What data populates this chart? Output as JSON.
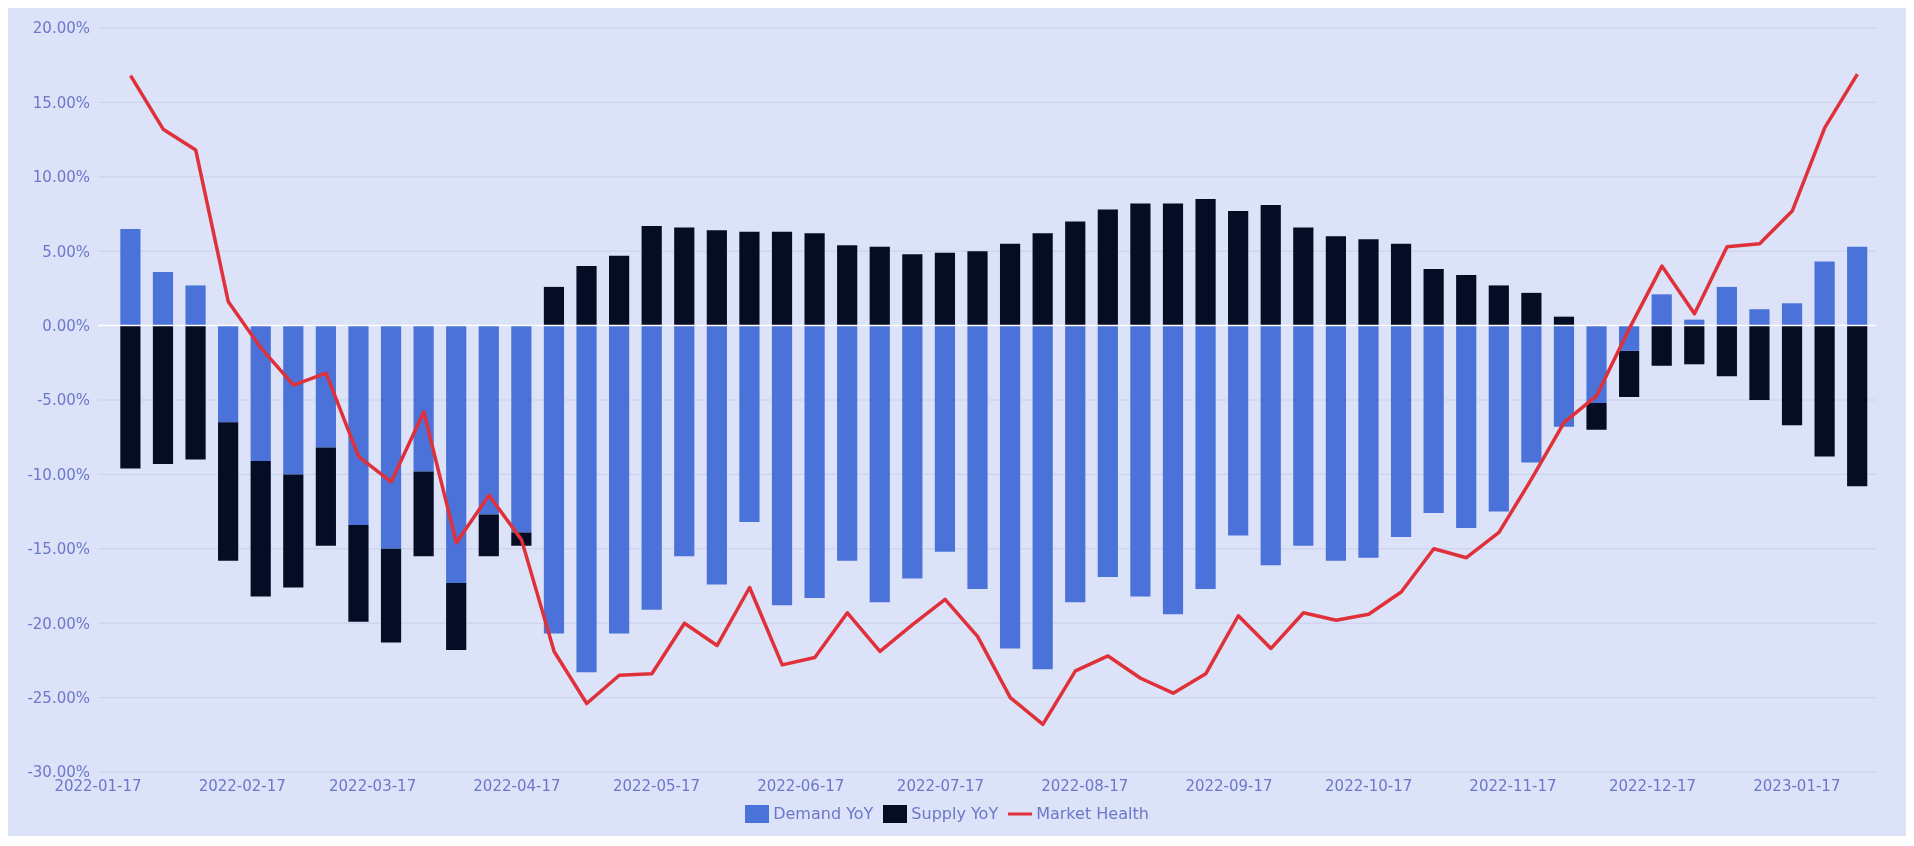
{
  "chart_data": {
    "type": "bar",
    "stacked": true,
    "x": [
      "2022-01-24",
      "2022-01-31",
      "2022-02-07",
      "2022-02-14",
      "2022-02-21",
      "2022-02-28",
      "2022-03-07",
      "2022-03-14",
      "2022-03-21",
      "2022-03-28",
      "2022-04-04",
      "2022-04-11",
      "2022-04-18",
      "2022-04-25",
      "2022-05-02",
      "2022-05-09",
      "2022-05-16",
      "2022-05-23",
      "2022-05-30",
      "2022-06-06",
      "2022-06-13",
      "2022-06-20",
      "2022-06-27",
      "2022-07-04",
      "2022-07-11",
      "2022-07-18",
      "2022-07-25",
      "2022-08-01",
      "2022-08-08",
      "2022-08-15",
      "2022-08-22",
      "2022-08-29",
      "2022-09-05",
      "2022-09-12",
      "2022-09-19",
      "2022-09-26",
      "2022-10-03",
      "2022-10-10",
      "2022-10-17",
      "2022-10-24",
      "2022-10-31",
      "2022-11-07",
      "2022-11-14",
      "2022-11-21",
      "2022-11-28",
      "2022-12-05",
      "2022-12-12",
      "2022-12-19",
      "2022-12-26",
      "2023-01-02",
      "2023-01-09",
      "2023-01-16",
      "2023-01-23",
      "2023-01-30"
    ],
    "series": [
      {
        "name": "Demand YoY",
        "color": "#4a72d9",
        "values": [
          6.5,
          3.6,
          2.7,
          -6.5,
          -9.1,
          -10.0,
          -8.2,
          -13.4,
          -15.0,
          -9.8,
          -17.3,
          -12.7,
          -13.9,
          -20.7,
          -23.3,
          -20.7,
          -19.1,
          -15.5,
          -17.4,
          -13.2,
          -18.8,
          -18.3,
          -15.8,
          -18.6,
          -17.0,
          -15.2,
          -17.7,
          -21.7,
          -23.1,
          -18.6,
          -16.9,
          -18.2,
          -19.4,
          -17.7,
          -14.1,
          -16.1,
          -14.8,
          -15.8,
          -15.6,
          -14.2,
          -12.6,
          -13.6,
          -12.5,
          -9.2,
          -6.8,
          -5.2,
          -1.7,
          2.1,
          0.4,
          2.6,
          1.1,
          1.5,
          4.3,
          5.3
        ]
      },
      {
        "name": "Supply YoY",
        "color": "#050d25",
        "values": [
          -9.6,
          -9.3,
          -9.0,
          -9.3,
          -9.1,
          -7.6,
          -6.6,
          -6.5,
          -6.3,
          -5.7,
          -4.5,
          -2.8,
          -0.9,
          2.6,
          4.0,
          4.7,
          6.7,
          6.6,
          6.4,
          6.3,
          6.3,
          6.2,
          5.4,
          5.3,
          4.8,
          4.9,
          5.0,
          5.5,
          6.2,
          7.0,
          7.8,
          8.2,
          8.2,
          8.5,
          7.7,
          8.1,
          6.6,
          6.0,
          5.8,
          5.5,
          3.8,
          3.4,
          2.7,
          2.2,
          0.6,
          -1.8,
          -3.1,
          -2.7,
          -2.6,
          -3.4,
          -5.0,
          -6.7,
          -8.8,
          -10.8
        ]
      },
      {
        "name": "Market Health",
        "type": "line",
        "color": "#e0313a",
        "values": [
          16.8,
          13.2,
          11.8,
          1.6,
          -1.5,
          -4.0,
          -3.2,
          -8.8,
          -10.5,
          -5.8,
          -14.6,
          -11.4,
          -14.4,
          -21.9,
          -25.4,
          -23.5,
          -23.4,
          -20.0,
          -21.5,
          -17.6,
          -22.8,
          -22.3,
          -19.3,
          -21.9,
          -20.1,
          -18.4,
          -20.9,
          -25.0,
          -26.8,
          -23.2,
          -22.2,
          -23.7,
          -24.7,
          -23.4,
          -19.5,
          -21.7,
          -19.3,
          -19.8,
          -19.4,
          -17.9,
          -15.0,
          -15.6,
          -13.9,
          -10.3,
          -6.5,
          -4.7,
          -0.2,
          4.0,
          0.8,
          5.3,
          5.5,
          7.7,
          13.3,
          16.9
        ]
      }
    ],
    "xlim": [
      "2022-01-17",
      "2023-02-03"
    ],
    "xticks": [
      "2022-01-17",
      "2022-02-17",
      "2022-03-17",
      "2022-04-17",
      "2022-05-17",
      "2022-06-17",
      "2022-07-17",
      "2022-08-17",
      "2022-09-17",
      "2022-10-17",
      "2022-11-17",
      "2022-12-17",
      "2023-01-17"
    ],
    "ylim": [
      -30,
      20
    ],
    "yticks": [
      {
        "value": -30,
        "label": "-30.00%"
      },
      {
        "value": -25,
        "label": "-25.00%"
      },
      {
        "value": -20,
        "label": "-20.00%"
      },
      {
        "value": -15,
        "label": "-15.00%"
      },
      {
        "value": -10,
        "label": "-10.00%"
      },
      {
        "value": -5,
        "label": "-5.00%"
      },
      {
        "value": 0,
        "label": "0.00%"
      },
      {
        "value": 5,
        "label": "5.00%"
      },
      {
        "value": 10,
        "label": "10.00%"
      },
      {
        "value": 15,
        "label": "15.00%"
      },
      {
        "value": 20,
        "label": "20.00%"
      }
    ],
    "grid": "y",
    "legend": "bottom",
    "marker": "none",
    "line_style": "solid"
  }
}
